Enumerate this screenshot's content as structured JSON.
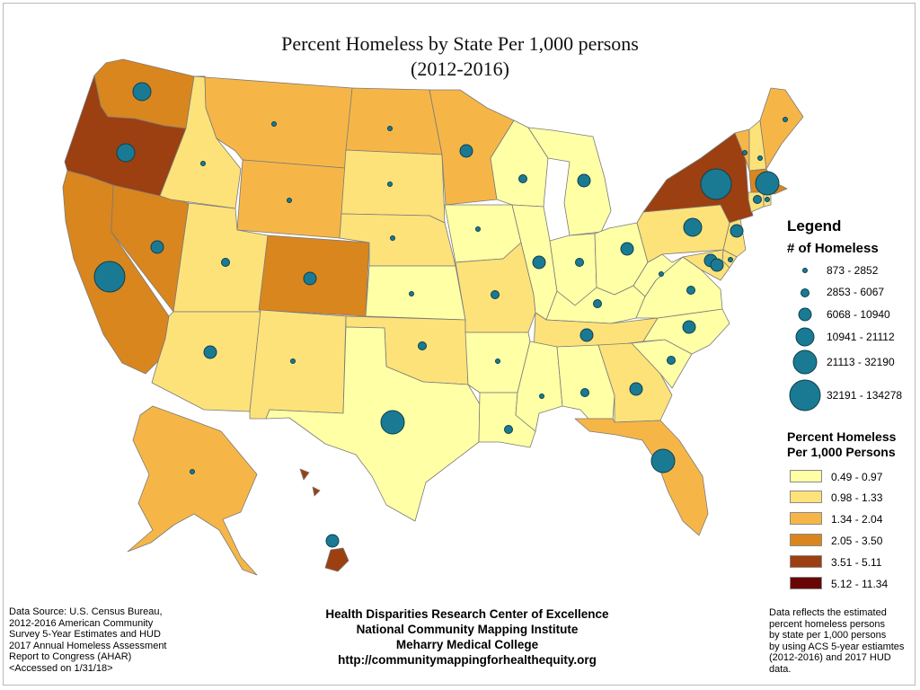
{
  "title_line1": "Percent Homeless by State Per 1,000 persons",
  "title_line2": "(2012-2016)",
  "legend": {
    "heading": "Legend",
    "count_heading": "# of Homeless",
    "count_classes": [
      {
        "label": "873 - 2852",
        "rank": 1
      },
      {
        "label": "2853 - 6067",
        "rank": 2
      },
      {
        "label": "6068 - 10940",
        "rank": 3
      },
      {
        "label": "10941 - 21112",
        "rank": 4
      },
      {
        "label": "21113 - 32190",
        "rank": 5
      },
      {
        "label": "32191 - 134278",
        "rank": 6
      }
    ],
    "percent_heading_line1": "Percent Homeless",
    "percent_heading_line2": "Per 1,000 Persons",
    "percent_classes": [
      {
        "label": "0.49 - 0.97",
        "color": "#ffffa6"
      },
      {
        "label": "0.98 - 1.33",
        "color": "#fde27a"
      },
      {
        "label": "1.34 - 2.04",
        "color": "#f6b647"
      },
      {
        "label": "2.05 - 3.50",
        "color": "#d9861f"
      },
      {
        "label": "3.51 - 5.11",
        "color": "#9c3f11"
      },
      {
        "label": "5.12 - 11.34",
        "color": "#680505"
      }
    ]
  },
  "source": {
    "lines": [
      "Data Source: U.S. Census Bureau,",
      "2012-2016 American Community",
      "Survey 5-Year Estimates and HUD",
      "2017 Annual Homeless Assessment",
      "Report to Congress (AHAR)",
      "<Accessed on 1/31/18>"
    ]
  },
  "credits": {
    "lines": [
      "Health Disparities Research Center of Excellence",
      "National Community Mapping Institute",
      "Meharry Medical College",
      "http://communitymappingforhealthequity.org"
    ]
  },
  "note": {
    "lines": [
      "Data reflects the estimated",
      "percent homeless persons",
      "by state per 1,000 persons",
      "by using ACS 5-year estiamtes",
      "(2012-2016) and 2017 HUD",
      "data."
    ]
  },
  "states": [
    {
      "abbr": "WA",
      "percent_class": 4,
      "count_class": 4
    },
    {
      "abbr": "OR",
      "percent_class": 5,
      "count_class": 4
    },
    {
      "abbr": "CA",
      "percent_class": 4,
      "count_class": 6
    },
    {
      "abbr": "NV",
      "percent_class": 4,
      "count_class": 3
    },
    {
      "abbr": "ID",
      "percent_class": 2,
      "count_class": 1
    },
    {
      "abbr": "MT",
      "percent_class": 3,
      "count_class": 1
    },
    {
      "abbr": "WY",
      "percent_class": 3,
      "count_class": 1
    },
    {
      "abbr": "UT",
      "percent_class": 2,
      "count_class": 2
    },
    {
      "abbr": "AZ",
      "percent_class": 2,
      "count_class": 3
    },
    {
      "abbr": "CO",
      "percent_class": 4,
      "count_class": 3
    },
    {
      "abbr": "NM",
      "percent_class": 2,
      "count_class": 1
    },
    {
      "abbr": "ND",
      "percent_class": 3,
      "count_class": 1
    },
    {
      "abbr": "SD",
      "percent_class": 2,
      "count_class": 1
    },
    {
      "abbr": "NE",
      "percent_class": 2,
      "count_class": 1
    },
    {
      "abbr": "KS",
      "percent_class": 1,
      "count_class": 1
    },
    {
      "abbr": "OK",
      "percent_class": 2,
      "count_class": 2
    },
    {
      "abbr": "TX",
      "percent_class": 1,
      "count_class": 5
    },
    {
      "abbr": "MN",
      "percent_class": 3,
      "count_class": 3
    },
    {
      "abbr": "IA",
      "percent_class": 1,
      "count_class": 1
    },
    {
      "abbr": "MO",
      "percent_class": 2,
      "count_class": 2
    },
    {
      "abbr": "AR",
      "percent_class": 1,
      "count_class": 1
    },
    {
      "abbr": "LA",
      "percent_class": 1,
      "count_class": 2
    },
    {
      "abbr": "WI",
      "percent_class": 1,
      "count_class": 2
    },
    {
      "abbr": "IL",
      "percent_class": 1,
      "count_class": 3
    },
    {
      "abbr": "MI",
      "percent_class": 1,
      "count_class": 3
    },
    {
      "abbr": "IN",
      "percent_class": 1,
      "count_class": 2
    },
    {
      "abbr": "OH",
      "percent_class": 1,
      "count_class": 3
    },
    {
      "abbr": "KY",
      "percent_class": 1,
      "count_class": 2
    },
    {
      "abbr": "TN",
      "percent_class": 2,
      "count_class": 3
    },
    {
      "abbr": "MS",
      "percent_class": 1,
      "count_class": 1
    },
    {
      "abbr": "AL",
      "percent_class": 1,
      "count_class": 2
    },
    {
      "abbr": "GA",
      "percent_class": 2,
      "count_class": 3
    },
    {
      "abbr": "FL",
      "percent_class": 3,
      "count_class": 5
    },
    {
      "abbr": "SC",
      "percent_class": 1,
      "count_class": 2
    },
    {
      "abbr": "NC",
      "percent_class": 1,
      "count_class": 3
    },
    {
      "abbr": "VA",
      "percent_class": 1,
      "count_class": 2
    },
    {
      "abbr": "WV",
      "percent_class": 1,
      "count_class": 1
    },
    {
      "abbr": "PA",
      "percent_class": 2,
      "count_class": 4
    },
    {
      "abbr": "NY",
      "percent_class": 5,
      "count_class": 6
    },
    {
      "abbr": "VT",
      "percent_class": 3,
      "count_class": 1
    },
    {
      "abbr": "NH",
      "percent_class": 2,
      "count_class": 1
    },
    {
      "abbr": "ME",
      "percent_class": 3,
      "count_class": 1
    },
    {
      "abbr": "MA",
      "percent_class": 4,
      "count_class": 5
    },
    {
      "abbr": "CT",
      "percent_class": 2,
      "count_class": 2
    },
    {
      "abbr": "RI",
      "percent_class": 2,
      "count_class": 1
    },
    {
      "abbr": "NJ",
      "percent_class": 2,
      "count_class": 3
    },
    {
      "abbr": "DE",
      "percent_class": 2,
      "count_class": 1
    },
    {
      "abbr": "MD",
      "percent_class": 2,
      "count_class": 3
    },
    {
      "abbr": "DC",
      "percent_class": 6,
      "count_class": 3
    },
    {
      "abbr": "AK",
      "percent_class": 3,
      "count_class": 1
    },
    {
      "abbr": "HI",
      "percent_class": 5,
      "count_class": 3
    }
  ]
}
